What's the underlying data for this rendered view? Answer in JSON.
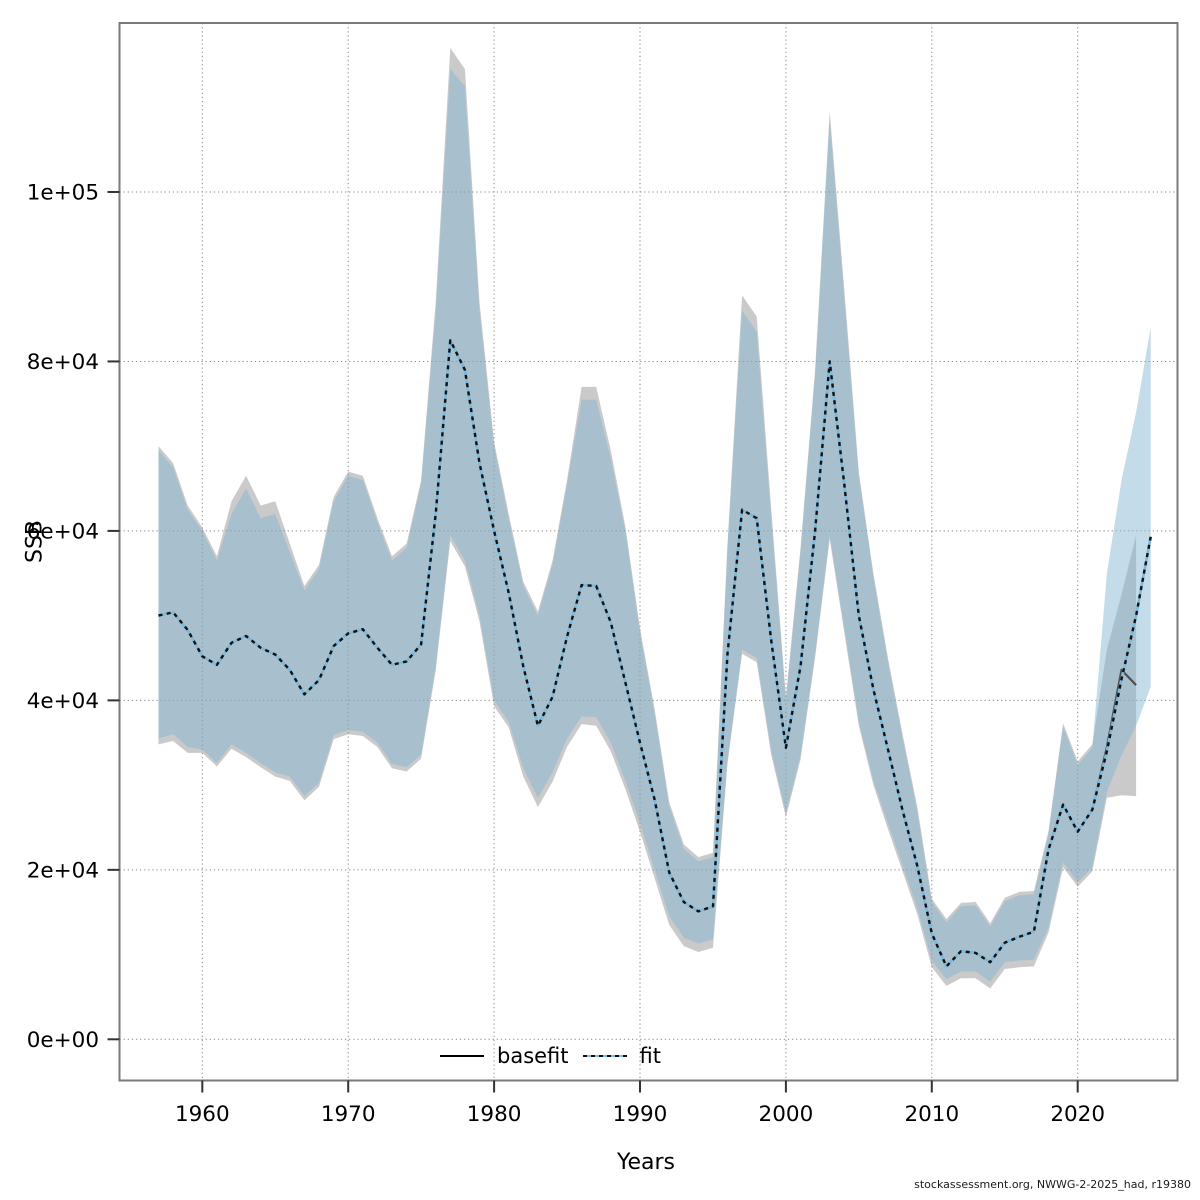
{
  "footer": "stockassessment.org, NWWG-2-2025_had, r19380",
  "legend": {
    "basefit_label": "basefit",
    "fit_label": "fit"
  },
  "colors": {
    "basefit_band": "rgba(128,128,128,0.42)",
    "fit_band": "rgba(130,180,210,0.47)",
    "basefit_line": "#4d4d4d",
    "fit_line_dash": "#111111",
    "fit_line_underlay": "#7db9dd",
    "grid": "#8a8a8a",
    "border": "#7a7a7a",
    "tick": "#333333"
  },
  "chart_data": {
    "type": "line",
    "title": "",
    "xlabel": "Years",
    "ylabel": "SSB",
    "grid": "dotted",
    "legend_position": "bottom-center-inside",
    "xlim": [
      1954.3,
      2026.8
    ],
    "ylim": [
      -4800,
      120000
    ],
    "x_ticks": [
      1960,
      1970,
      1980,
      1990,
      2000,
      2010,
      2020
    ],
    "y_ticks": [
      {
        "value": 0,
        "label": "0e+00"
      },
      {
        "value": 20000,
        "label": "2e+04"
      },
      {
        "value": 40000,
        "label": "4e+04"
      },
      {
        "value": 60000,
        "label": "6e+04"
      },
      {
        "value": 80000,
        "label": "8e+04"
      },
      {
        "value": 100000,
        "label": "1e+05"
      }
    ],
    "series": [
      {
        "name": "basefit",
        "line_style": "solid",
        "years": [
          1957,
          1958,
          1959,
          1960,
          1961,
          1962,
          1963,
          1964,
          1965,
          1966,
          1967,
          1968,
          1969,
          1970,
          1971,
          1972,
          1973,
          1974,
          1975,
          1976,
          1977,
          1978,
          1979,
          1980,
          1981,
          1982,
          1983,
          1984,
          1985,
          1986,
          1987,
          1988,
          1989,
          1990,
          1991,
          1992,
          1993,
          1994,
          1995,
          1996,
          1997,
          1998,
          1999,
          2000,
          2001,
          2002,
          2003,
          2004,
          2005,
          2006,
          2007,
          2008,
          2009,
          2010,
          2011,
          2012,
          2013,
          2014,
          2015,
          2016,
          2017,
          2018,
          2019,
          2020,
          2021,
          2022,
          2023,
          2024
        ],
        "ssb": [
          50000,
          50400,
          48300,
          45200,
          44200,
          46800,
          47600,
          46200,
          45400,
          43600,
          40700,
          42400,
          46400,
          47900,
          48400,
          46200,
          44200,
          44600,
          46600,
          62000,
          82500,
          79000,
          68000,
          60000,
          52700,
          44000,
          37000,
          40400,
          47500,
          53600,
          53500,
          49200,
          42100,
          35000,
          28300,
          19700,
          16200,
          15100,
          15700,
          45500,
          62500,
          61500,
          47000,
          34400,
          44000,
          60000,
          80000,
          65500,
          50000,
          41300,
          34200,
          27000,
          20500,
          12500,
          8600,
          10400,
          10200,
          9100,
          11400,
          12100,
          12700,
          22400,
          27700,
          24500,
          27100,
          34500,
          43600,
          41800
        ],
        "ci_lower": [
          34800,
          35200,
          33800,
          33800,
          32200,
          34300,
          33300,
          32100,
          31000,
          30500,
          28200,
          29800,
          35400,
          36000,
          35800,
          34500,
          32000,
          31600,
          33100,
          43500,
          58800,
          55800,
          49300,
          39300,
          36800,
          31000,
          27400,
          30400,
          34500,
          37200,
          37000,
          34000,
          29500,
          24500,
          19000,
          13500,
          11000,
          10300,
          10800,
          32500,
          45500,
          44500,
          33500,
          26200,
          33000,
          45000,
          59000,
          48000,
          37000,
          30000,
          24800,
          19800,
          14800,
          8500,
          6300,
          7200,
          7200,
          6000,
          8300,
          8500,
          8600,
          12600,
          20300,
          18000,
          19800,
          28500,
          28800,
          28700
        ],
        "ci_upper": [
          70000,
          68000,
          63000,
          60400,
          57000,
          63500,
          66500,
          63000,
          63500,
          58500,
          53500,
          56000,
          64000,
          67000,
          66500,
          61500,
          57000,
          58500,
          66000,
          87000,
          117000,
          114500,
          87000,
          70500,
          62000,
          54000,
          50500,
          56500,
          66000,
          77000,
          77000,
          69500,
          60500,
          48500,
          39000,
          28000,
          23000,
          21500,
          22000,
          58500,
          87800,
          85300,
          62500,
          40400,
          58000,
          79000,
          109500,
          88500,
          67000,
          55000,
          45000,
          36000,
          27500,
          16600,
          14200,
          16100,
          16200,
          13700,
          16700,
          17400,
          17500,
          24600,
          37300,
          32800,
          34800,
          46000,
          52500,
          59500
        ]
      },
      {
        "name": "fit",
        "line_style": "dotted",
        "years": [
          1957,
          1958,
          1959,
          1960,
          1961,
          1962,
          1963,
          1964,
          1965,
          1966,
          1967,
          1968,
          1969,
          1970,
          1971,
          1972,
          1973,
          1974,
          1975,
          1976,
          1977,
          1978,
          1979,
          1980,
          1981,
          1982,
          1983,
          1984,
          1985,
          1986,
          1987,
          1988,
          1989,
          1990,
          1991,
          1992,
          1993,
          1994,
          1995,
          1996,
          1997,
          1998,
          1999,
          2000,
          2001,
          2002,
          2003,
          2004,
          2005,
          2006,
          2007,
          2008,
          2009,
          2010,
          2011,
          2012,
          2013,
          2014,
          2015,
          2016,
          2017,
          2018,
          2019,
          2020,
          2021,
          2022,
          2023,
          2024,
          2025
        ],
        "ssb": [
          50000,
          50400,
          48300,
          45200,
          44200,
          46800,
          47600,
          46200,
          45400,
          43600,
          40700,
          42400,
          46400,
          47900,
          48400,
          46200,
          44200,
          44600,
          46600,
          62000,
          82500,
          79000,
          68000,
          60000,
          52700,
          44000,
          37000,
          40400,
          47500,
          53600,
          53500,
          49200,
          42100,
          35000,
          28300,
          19700,
          16200,
          15100,
          15700,
          45500,
          62500,
          61500,
          47000,
          34400,
          44000,
          60000,
          80000,
          65500,
          50000,
          41300,
          34200,
          27000,
          20500,
          12500,
          8600,
          10400,
          10200,
          9100,
          11400,
          12100,
          12700,
          22400,
          27700,
          24500,
          27100,
          34000,
          42500,
          50000,
          59300
        ],
        "ci_lower": [
          35500,
          36000,
          34500,
          34200,
          32600,
          34800,
          33800,
          32600,
          31500,
          31000,
          28700,
          30300,
          35900,
          36500,
          36300,
          35000,
          32500,
          32100,
          33600,
          44000,
          59500,
          56500,
          50000,
          40000,
          37500,
          32000,
          28500,
          31500,
          35500,
          38100,
          38000,
          35000,
          30500,
          25500,
          20000,
          14500,
          12000,
          11300,
          11800,
          33000,
          46000,
          45000,
          34000,
          26700,
          33500,
          45500,
          59500,
          48500,
          37500,
          30500,
          25500,
          20500,
          15500,
          9300,
          7100,
          8000,
          8000,
          6800,
          9100,
          9300,
          9400,
          13200,
          20900,
          18500,
          20300,
          29200,
          33500,
          37000,
          41600
        ],
        "ci_upper": [
          69500,
          67500,
          62500,
          60000,
          56500,
          62000,
          65000,
          61500,
          62000,
          57500,
          53000,
          55500,
          63500,
          66500,
          66000,
          61000,
          56500,
          58000,
          65500,
          86000,
          114500,
          112500,
          86000,
          70000,
          61500,
          53500,
          50000,
          56000,
          65500,
          75500,
          75500,
          68500,
          60000,
          48000,
          38500,
          27500,
          22500,
          21000,
          21500,
          58000,
          86000,
          83500,
          61500,
          40000,
          57500,
          78500,
          108500,
          87500,
          66500,
          54500,
          44500,
          35500,
          27000,
          16200,
          13800,
          15700,
          15800,
          13300,
          16300,
          17000,
          17100,
          24200,
          36900,
          32400,
          34400,
          55000,
          66000,
          74000,
          84000
        ]
      }
    ]
  }
}
